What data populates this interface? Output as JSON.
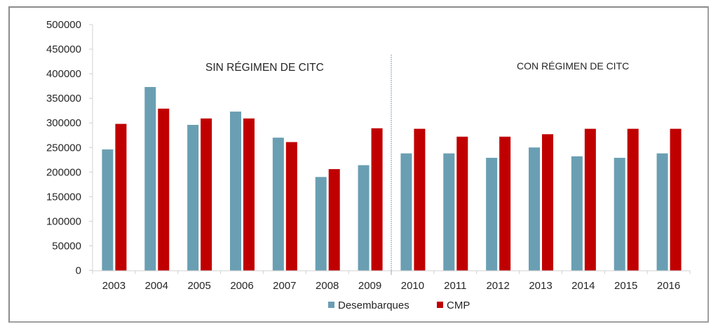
{
  "chart_data": {
    "type": "bar",
    "title": "",
    "xlabel": "",
    "ylabel": "",
    "ylim": [
      0,
      500000
    ],
    "yticks": [
      0,
      50000,
      100000,
      150000,
      200000,
      250000,
      300000,
      350000,
      400000,
      450000,
      500000
    ],
    "ytick_labels": [
      "0",
      "50000",
      "100000",
      "150000",
      "200000",
      "250000",
      "300000",
      "350000",
      "400000",
      "450000",
      "500000"
    ],
    "grid": false,
    "categories": [
      "2003",
      "2004",
      "2005",
      "2006",
      "2007",
      "2008",
      "2009",
      "2010",
      "2011",
      "2012",
      "2013",
      "2014",
      "2015",
      "2016"
    ],
    "series": [
      {
        "name": "Desembarques",
        "color": "#6a9fb3",
        "values": [
          246000,
          373000,
          296000,
          323000,
          270000,
          190000,
          214000,
          238000,
          238000,
          229000,
          250000,
          232000,
          229000,
          238000
        ]
      },
      {
        "name": "CMP",
        "color": "#c00000",
        "values": [
          298000,
          329000,
          309000,
          309000,
          261000,
          206000,
          289000,
          288000,
          272000,
          272000,
          277000,
          288000,
          288000,
          288000
        ]
      }
    ],
    "legend_position": "bottom-center",
    "annotations": [
      {
        "text": "SIN RÉGIMEN DE CITC",
        "region": "2003-2009"
      },
      {
        "text": "CON RÉGIMEN DE CITC",
        "region": "2010-2016"
      }
    ],
    "divider": {
      "between": [
        "2009",
        "2010"
      ],
      "style": "dotted"
    }
  }
}
